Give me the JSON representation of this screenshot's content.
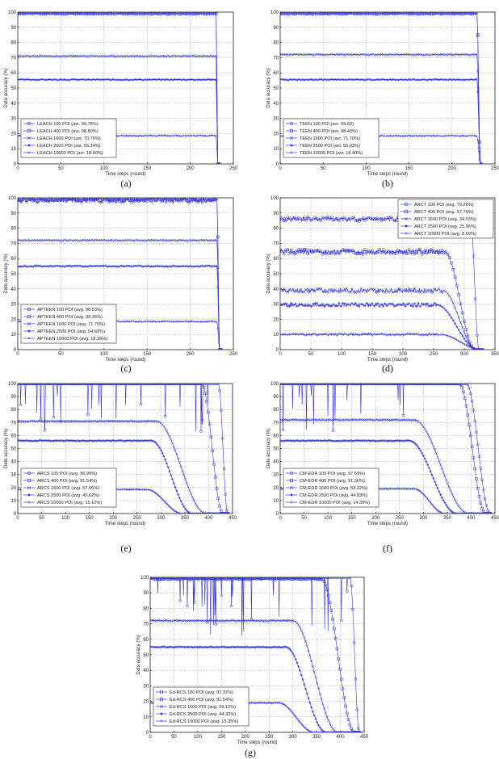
{
  "figure": {
    "color": "#3333dd"
  },
  "chart_data": [
    {
      "type": "line",
      "caption": "(a)",
      "xlabel": "Time steps (round)",
      "ylabel": "Data accuracy (%)",
      "xlim": [
        0,
        250
      ],
      "ylim": [
        0,
        100
      ],
      "xticks": [
        0,
        50,
        100,
        150,
        200,
        250
      ],
      "yticks": [
        0,
        10,
        20,
        30,
        40,
        50,
        60,
        70,
        80,
        90,
        100
      ],
      "grid": true,
      "legend": "bottom-left",
      "series": [
        {
          "name": "LEACH 100 POI (avr. 99.78%)",
          "marker": "o",
          "plateau": 100,
          "noise": 0.6,
          "drop_start": 230,
          "drop_end": 232,
          "spikes": 0,
          "seed": 11
        },
        {
          "name": "LEACH 400 POI (avr. 98.80%)",
          "marker": "s",
          "plateau": 99,
          "noise": 0.4,
          "drop_start": 230,
          "drop_end": 232,
          "spikes": 0,
          "seed": 12
        },
        {
          "name": "LEACH 1600 POI (avr. 70.76%)",
          "marker": "x",
          "plateau": 71,
          "noise": 0.3,
          "drop_start": 230,
          "drop_end": 232,
          "spikes": 0,
          "seed": 13
        },
        {
          "name": "LEACH 2500 POI (avr. 55.14%)",
          "marker": "*",
          "plateau": 55.5,
          "noise": 0.3,
          "drop_start": 230,
          "drop_end": 232,
          "spikes": 0,
          "seed": 14
        },
        {
          "name": "LEACH 10000 POI (avr. 18.60%)",
          "marker": "+",
          "plateau": 18.6,
          "noise": 0.3,
          "drop_start": 230,
          "drop_end": 232,
          "spikes": 0,
          "seed": 15
        }
      ]
    },
    {
      "type": "line",
      "caption": "(b)",
      "xlabel": "Time steps (round)",
      "ylabel": "Data accuracy (%)",
      "xlim": [
        0,
        250
      ],
      "ylim": [
        0,
        100
      ],
      "xticks": [
        0,
        50,
        100,
        150,
        200,
        250
      ],
      "yticks": [
        0,
        10,
        20,
        30,
        40,
        50,
        60,
        70,
        80,
        90,
        100
      ],
      "grid": true,
      "legend": "bottom-left",
      "series": [
        {
          "name": "TEEN 100 POI (avr. 99.60)",
          "marker": "o",
          "plateau": 100,
          "noise": 0.6,
          "drop_start": 229,
          "drop_end": 233,
          "spikes": 0,
          "seed": 21
        },
        {
          "name": "TEEN 400 POI (avr. 98.40%)",
          "marker": "s",
          "plateau": 99,
          "noise": 0.4,
          "drop_start": 229,
          "drop_end": 233,
          "spikes": 0,
          "seed": 22
        },
        {
          "name": "TEEN 1600 POI (avr. 71.70%)",
          "marker": "x",
          "plateau": 72,
          "noise": 0.3,
          "drop_start": 229,
          "drop_end": 233,
          "spikes": 0,
          "seed": 23
        },
        {
          "name": "TEEN 2500 POI (avr. 55.03%)",
          "marker": "*",
          "plateau": 55.5,
          "noise": 0.3,
          "drop_start": 229,
          "drop_end": 233,
          "spikes": 0,
          "seed": 24
        },
        {
          "name": "TEEN 10000 POI (avr. 18.40%)",
          "marker": "+",
          "plateau": 18.5,
          "noise": 0.3,
          "drop_start": 229,
          "drop_end": 233,
          "spikes": 0,
          "seed": 25
        }
      ]
    },
    {
      "type": "line",
      "caption": "(c)",
      "xlabel": "Time steps (round)",
      "ylabel": "Data accuracy (%)",
      "xlim": [
        0,
        250
      ],
      "ylim": [
        0,
        100
      ],
      "xticks": [
        0,
        50,
        100,
        150,
        200,
        250
      ],
      "yticks": [
        0,
        10,
        20,
        30,
        40,
        50,
        60,
        70,
        80,
        90,
        100
      ],
      "grid": true,
      "legend": "bottom-left",
      "series": [
        {
          "name": "APTEEN 100 POI (avg. 98.53%)",
          "marker": "o",
          "plateau": 98.5,
          "noise": 1.6,
          "drop_start": 231,
          "drop_end": 234,
          "spikes": 0,
          "seed": 31
        },
        {
          "name": "APTEEN 400 POI (avg. 98.26%)",
          "marker": "s",
          "plateau": 99,
          "noise": 1.0,
          "drop_start": 231,
          "drop_end": 234,
          "spikes": 0,
          "seed": 32
        },
        {
          "name": "APTEEN 1600 POI (avg. 71.70%)",
          "marker": "x",
          "plateau": 72,
          "noise": 0.3,
          "drop_start": 231,
          "drop_end": 234,
          "spikes": 0,
          "seed": 33
        },
        {
          "name": "APTEEN 2500 POI (avg. 54.69%)",
          "marker": "*",
          "plateau": 55,
          "noise": 0.4,
          "drop_start": 231,
          "drop_end": 234,
          "spikes": 0,
          "seed": 34
        },
        {
          "name": "APTEEN 10000 POI (avg. 18.39%)",
          "marker": "+",
          "plateau": 18.5,
          "noise": 0.3,
          "drop_start": 231,
          "drop_end": 234,
          "spikes": 0,
          "seed": 35
        }
      ]
    },
    {
      "type": "line",
      "caption": "(d)",
      "xlabel": "Time steps (round)",
      "ylabel": "Data accuracy (%)",
      "xlim": [
        0,
        350
      ],
      "ylim": [
        0,
        100
      ],
      "xticks": [
        0,
        50,
        100,
        150,
        200,
        250,
        300,
        350
      ],
      "yticks": [
        0,
        10,
        20,
        30,
        40,
        50,
        60,
        70,
        80,
        90,
        100
      ],
      "grid": true,
      "legend": "top-right",
      "series": [
        {
          "name": "ARCT 100 POI (avg. 79.26%)",
          "marker": "o",
          "plateau": 86,
          "noise": 1.6,
          "drop_start": 310,
          "drop_end": 324,
          "spikes": 0,
          "seed": 41
        },
        {
          "name": "ARCT 400 POI (avg. 57.76%)",
          "marker": "s",
          "plateau": 64.5,
          "noise": 1.6,
          "drop_start": 268,
          "drop_end": 318,
          "spikes": 0,
          "seed": 42
        },
        {
          "name": "ARCT 1600 POI (avg. 34.03%)",
          "marker": "x",
          "plateau": 39,
          "noise": 1.5,
          "drop_start": 265,
          "drop_end": 320,
          "spikes": 0,
          "seed": 43
        },
        {
          "name": "ARCT 2500 POI (avg. 25.96%)",
          "marker": "*",
          "plateau": 29.5,
          "noise": 1.2,
          "drop_start": 255,
          "drop_end": 322,
          "spikes": 0,
          "seed": 44
        },
        {
          "name": "ARCT 10000 POI (avg. 8.60%)",
          "marker": "+",
          "plateau": 10,
          "noise": 0.6,
          "drop_start": 260,
          "drop_end": 328,
          "spikes": 0,
          "seed": 45
        }
      ]
    },
    {
      "type": "line",
      "caption": "(e)",
      "xlabel": "Time steps (round)",
      "ylabel": "Data accuracy (%)",
      "xlim": [
        0,
        450
      ],
      "ylim": [
        0,
        100
      ],
      "xticks": [
        0,
        50,
        100,
        150,
        200,
        250,
        300,
        350,
        400,
        450
      ],
      "yticks": [
        0,
        10,
        20,
        30,
        40,
        50,
        60,
        70,
        80,
        90,
        100
      ],
      "grid": true,
      "legend": "bottom-left",
      "series": [
        {
          "name": "ARCS 100 POI (avg. 96.99%)",
          "marker": "o",
          "plateau": 100,
          "noise": 0.2,
          "drop_start": 420,
          "drop_end": 440,
          "spikes": 24,
          "seed": 51
        },
        {
          "name": "ARCS 400 POI (avg. 91.54%)",
          "marker": "s",
          "plateau": 100,
          "noise": 0.2,
          "drop_start": 385,
          "drop_end": 430,
          "spikes": 0,
          "seed": 52
        },
        {
          "name": "ARCS 1600 POI (avg. 57.95%)",
          "marker": "x",
          "plateau": 71,
          "noise": 0.3,
          "drop_start": 290,
          "drop_end": 395,
          "spikes": 0,
          "seed": 53
        },
        {
          "name": "ARCS 2500 POI (avg. 45.62%)",
          "marker": "*",
          "plateau": 56,
          "noise": 0.3,
          "drop_start": 280,
          "drop_end": 365,
          "spikes": 0,
          "seed": 54
        },
        {
          "name": "ARCS 10000 POI (avg. 15.12%)",
          "marker": "+",
          "plateau": 18.5,
          "noise": 0.3,
          "drop_start": 270,
          "drop_end": 345,
          "spikes": 0,
          "seed": 55
        }
      ]
    },
    {
      "type": "line",
      "caption": "(f)",
      "xlabel": "Time steps (round)",
      "ylabel": "Data accuracy (%)",
      "xlim": [
        0,
        450
      ],
      "ylim": [
        0,
        100
      ],
      "xticks": [
        0,
        50,
        100,
        150,
        200,
        250,
        300,
        350,
        400,
        450
      ],
      "yticks": [
        0,
        10,
        20,
        30,
        40,
        50,
        60,
        70,
        80,
        90,
        100
      ],
      "grid": true,
      "legend": "bottom-left",
      "series": [
        {
          "name": "CM-EDR 100 POI (avg. 97.59%)",
          "marker": "o",
          "plateau": 100,
          "noise": 0.2,
          "drop_start": 390,
          "drop_end": 440,
          "spikes": 16,
          "seed": 61
        },
        {
          "name": "CM-EDR 400 POI (avg. 91.36%)",
          "marker": "s",
          "plateau": 100,
          "noise": 0.2,
          "drop_start": 375,
          "drop_end": 430,
          "spikes": 0,
          "seed": 62
        },
        {
          "name": "CM-EDR 1600 POI (avg. 58.22%)",
          "marker": "x",
          "plateau": 72,
          "noise": 0.3,
          "drop_start": 280,
          "drop_end": 395,
          "spikes": 0,
          "seed": 63
        },
        {
          "name": "CM-EDR 2500 POI (avg. 44.83%)",
          "marker": "*",
          "plateau": 56,
          "noise": 0.3,
          "drop_start": 270,
          "drop_end": 370,
          "spikes": 0,
          "seed": 64
        },
        {
          "name": "CM-EDR 10000 POI (avg. 14.39%)",
          "marker": "+",
          "plateau": 19,
          "noise": 0.3,
          "drop_start": 280,
          "drop_end": 345,
          "spikes": 0,
          "seed": 65
        }
      ]
    },
    {
      "type": "line",
      "caption": "(g)",
      "xlabel": "Time steps (round)",
      "ylabel": "Data accuracy (%)",
      "xlim": [
        0,
        450
      ],
      "ylim": [
        0,
        100
      ],
      "xticks": [
        0,
        50,
        100,
        150,
        200,
        250,
        300,
        350,
        400,
        450
      ],
      "yticks": [
        0,
        10,
        20,
        30,
        40,
        50,
        60,
        70,
        80,
        90,
        100
      ],
      "grid": true,
      "legend": "bottom-left",
      "series": [
        {
          "name": "Ed-RCS 100 POI (avg. 97.37%)",
          "marker": "o",
          "plateau": 100,
          "noise": 0.2,
          "drop_start": 420,
          "drop_end": 440,
          "spikes": 26,
          "seed": 71
        },
        {
          "name": "Ed-RCS 400 POI (avg. 91.54%)",
          "marker": "s",
          "plateau": 99,
          "noise": 0.6,
          "drop_start": 360,
          "drop_end": 430,
          "spikes": 0,
          "seed": 72
        },
        {
          "name": "Ed-RCS 1600 POI (avg. 59.12%)",
          "marker": "x",
          "plateau": 72,
          "noise": 0.3,
          "drop_start": 300,
          "drop_end": 395,
          "spikes": 0,
          "seed": 73
        },
        {
          "name": "Ed-RCS 2500 POI (avg. 44.32%)",
          "marker": "*",
          "plateau": 55,
          "noise": 0.3,
          "drop_start": 285,
          "drop_end": 370,
          "spikes": 0,
          "seed": 74
        },
        {
          "name": "Ed-RCS 10000 POI (avg. 15.35%)",
          "marker": "+",
          "plateau": 19,
          "noise": 0.3,
          "drop_start": 270,
          "drop_end": 345,
          "spikes": 0,
          "seed": 75
        }
      ]
    }
  ]
}
